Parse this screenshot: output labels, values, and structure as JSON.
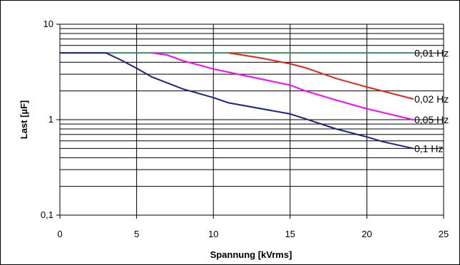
{
  "chart_data": {
    "type": "line",
    "title": "",
    "xlabel": "Spannung [kVrms]",
    "ylabel": "Last [µF]",
    "x_scale": "linear",
    "y_scale": "log",
    "xlim": [
      0,
      25
    ],
    "ylim": [
      0.1,
      10
    ],
    "x_ticks": [
      0,
      5,
      10,
      15,
      20,
      25
    ],
    "x_tick_labels": [
      "0",
      "5",
      "10",
      "15",
      "20",
      "25"
    ],
    "y_ticks": [
      0.1,
      1,
      10
    ],
    "y_tick_labels": [
      "0,1",
      "1",
      "10"
    ],
    "grid": true,
    "legend": "inline-labels-right",
    "series": [
      {
        "name": "0,01 Hz",
        "color": "#3a8a57",
        "points": [
          [
            0,
            5
          ],
          [
            23,
            5
          ]
        ]
      },
      {
        "name": "0,02 Hz",
        "color": "#e0261b",
        "points": [
          [
            11,
            5
          ],
          [
            13,
            4.45
          ],
          [
            15,
            3.85
          ],
          [
            16,
            3.5
          ],
          [
            18,
            2.7
          ],
          [
            20,
            2.2
          ],
          [
            23,
            1.65
          ]
        ]
      },
      {
        "name": "0,05 Hz",
        "color": "#ff00ff",
        "points": [
          [
            6,
            5
          ],
          [
            7,
            4.75
          ],
          [
            8,
            4.15
          ],
          [
            10,
            3.4
          ],
          [
            12,
            2.9
          ],
          [
            15,
            2.3
          ],
          [
            16,
            2.0
          ],
          [
            18,
            1.6
          ],
          [
            20,
            1.3
          ],
          [
            23,
            1.0
          ]
        ]
      },
      {
        "name": "0,1 Hz",
        "color": "#1a237e",
        "points": [
          [
            0,
            5
          ],
          [
            3,
            5
          ],
          [
            4,
            4.2
          ],
          [
            5,
            3.45
          ],
          [
            6,
            2.8
          ],
          [
            8,
            2.1
          ],
          [
            10,
            1.7
          ],
          [
            11,
            1.5
          ],
          [
            15,
            1.15
          ],
          [
            16,
            1.02
          ],
          [
            18,
            0.8
          ],
          [
            20,
            0.66
          ],
          [
            21,
            0.59
          ],
          [
            23,
            0.5
          ]
        ]
      }
    ]
  }
}
